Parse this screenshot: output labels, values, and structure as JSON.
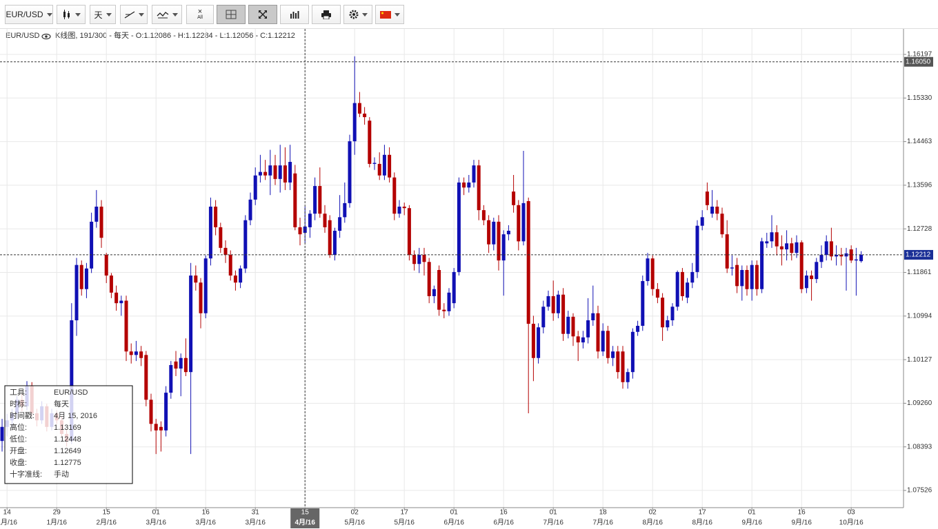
{
  "toolbar": {
    "symbol": "EUR/USD",
    "period": "天",
    "clear_label": "All"
  },
  "chart_data": {
    "type": "candlestick",
    "title": "EUR/USD",
    "subtitle": "K线图, 191/300 - 每天 - O:1.12086 - H:1.12284 - L:1.12056 - C:1.12212",
    "up_color": "#1010b4",
    "down_color": "#b40000",
    "grid": true,
    "ylim": [
      1.07184,
      1.16704
    ],
    "yticks": [
      1.07526,
      1.08393,
      {
        "value": 1.0926,
        "label": "1.09260"
      },
      1.10127,
      1.10994,
      1.11861,
      1.12728,
      1.13596,
      1.14463,
      {
        "value": 1.1533,
        "label": "1.15330"
      },
      1.16197
    ],
    "xlim": [
      -0.42,
      181.53
    ],
    "xticks": [
      {
        "value": 1,
        "label": "14"
      },
      {
        "value": 11,
        "label": "29"
      },
      {
        "value": 21,
        "label": "15"
      },
      {
        "value": 31,
        "label": "01"
      },
      {
        "value": 41,
        "label": "16"
      },
      {
        "value": 51,
        "label": "31"
      },
      {
        "value": 61,
        "label": "15"
      },
      {
        "value": 71,
        "label": "02"
      },
      {
        "value": 81,
        "label": "17"
      },
      {
        "value": 91,
        "label": "01"
      },
      {
        "value": 101,
        "label": "16"
      },
      {
        "value": 111,
        "label": "01"
      },
      {
        "value": 121,
        "label": "18"
      },
      {
        "value": 131,
        "label": "02"
      },
      {
        "value": 141,
        "label": "17"
      },
      {
        "value": 151,
        "label": "01"
      },
      {
        "value": 161,
        "label": "16"
      },
      {
        "value": 171,
        "label": "03"
      }
    ],
    "xtick_months": [
      "1月/16",
      "1月/16",
      "2月/16",
      "3月/16",
      "3月/16",
      "3月/16",
      "4月/16",
      "5月/16",
      "5月/16",
      "6月/16",
      "6月/16",
      "7月/16",
      "7月/16",
      "8月/16",
      "8月/16",
      "9月/16",
      "9月/16",
      "10月/16"
    ],
    "crosshair": {
      "x": 61,
      "x_label": "15",
      "x_month": "4月/16",
      "y": {
        "value": 1.1605,
        "label": "1.16050"
      }
    },
    "last_price": 1.12212,
    "ohlc": [
      [
        1.0851,
        1.0895,
        1.083,
        1.0879
      ],
      [
        1.0879,
        1.0905,
        1.086,
        1.0892
      ],
      [
        1.0892,
        1.0915,
        1.0878,
        1.0906
      ],
      [
        1.0906,
        1.094,
        1.0895,
        1.0933
      ],
      [
        1.0933,
        1.0945,
        1.091,
        1.092
      ],
      [
        1.092,
        1.097,
        1.0912,
        1.0961
      ],
      [
        1.0961,
        1.0968,
        1.09,
        1.0906
      ],
      [
        1.0906,
        1.0915,
        1.088,
        1.0892
      ],
      [
        1.0892,
        1.093,
        1.0885,
        1.092
      ],
      [
        1.092,
        1.0925,
        1.087,
        1.0879
      ],
      [
        1.0879,
        1.0915,
        1.0872,
        1.0906
      ],
      [
        1.0906,
        1.0912,
        1.0885,
        1.0892
      ],
      [
        1.0892,
        1.09,
        1.086,
        1.0865
      ],
      [
        1.0865,
        1.0875,
        1.084,
        1.0851
      ],
      [
        1.0851,
        1.1125,
        1.0845,
        1.1091
      ],
      [
        1.1091,
        1.1215,
        1.106,
        1.1201
      ],
      [
        1.1201,
        1.121,
        1.114,
        1.1153
      ],
      [
        1.1153,
        1.1205,
        1.1135,
        1.1194
      ],
      [
        1.1194,
        1.1305,
        1.1185,
        1.1287
      ],
      [
        1.1287,
        1.135,
        1.1275,
        1.1317
      ],
      [
        1.1317,
        1.133,
        1.1235,
        1.1255
      ],
      [
        1.1221,
        1.1225,
        1.1165,
        1.118
      ],
      [
        1.118,
        1.1185,
        1.1135,
        1.1146
      ],
      [
        1.1146,
        1.116,
        1.111,
        1.1125
      ],
      [
        1.1125,
        1.114,
        1.11,
        1.113
      ],
      [
        1.113,
        1.114,
        1.101,
        1.1029
      ],
      [
        1.1029,
        1.1045,
        1.1005,
        1.1022
      ],
      [
        1.1022,
        1.105,
        1.101,
        1.1029
      ],
      [
        1.1029,
        1.104,
        1.1,
        1.1016
      ],
      [
        1.1022,
        1.103,
        1.092,
        1.0933
      ],
      [
        1.0933,
        1.0945,
        1.087,
        1.0885
      ],
      [
        1.0885,
        1.0895,
        1.0825,
        1.0872
      ],
      [
        1.0879,
        1.089,
        1.083,
        1.0872
      ],
      [
        1.0872,
        1.096,
        1.086,
        1.0947
      ],
      [
        1.0947,
        1.101,
        1.0935,
        1.1002
      ],
      [
        1.1009,
        1.103,
        1.098,
        1.0995
      ],
      [
        1.0995,
        1.1025,
        1.094,
        1.1016
      ],
      [
        1.1016,
        1.1055,
        1.098,
        1.0988
      ],
      [
        1.0988,
        1.1205,
        1.0825,
        1.118
      ],
      [
        1.118,
        1.12,
        1.115,
        1.1166
      ],
      [
        1.1166,
        1.1175,
        1.1075,
        1.1105
      ],
      [
        1.1105,
        1.122,
        1.1095,
        1.1214
      ],
      [
        1.1214,
        1.1335,
        1.12,
        1.1317
      ],
      [
        1.1317,
        1.133,
        1.126,
        1.1276
      ],
      [
        1.1276,
        1.1285,
        1.1225,
        1.1235
      ],
      [
        1.1235,
        1.125,
        1.1205,
        1.1221
      ],
      [
        1.1221,
        1.123,
        1.117,
        1.118
      ],
      [
        1.118,
        1.119,
        1.115,
        1.1166
      ],
      [
        1.1166,
        1.12,
        1.1155,
        1.1194
      ],
      [
        1.1194,
        1.13,
        1.1185,
        1.129
      ],
      [
        1.129,
        1.1345,
        1.128,
        1.1331
      ],
      [
        1.1331,
        1.1395,
        1.132,
        1.1379
      ],
      [
        1.1379,
        1.142,
        1.1365,
        1.1386
      ],
      [
        1.1386,
        1.141,
        1.137,
        1.1379
      ],
      [
        1.1379,
        1.143,
        1.134,
        1.1399
      ],
      [
        1.1399,
        1.142,
        1.136,
        1.1372
      ],
      [
        1.1372,
        1.144,
        1.1345,
        1.1399
      ],
      [
        1.1399,
        1.1435,
        1.135,
        1.1365
      ],
      [
        1.1365,
        1.144,
        1.135,
        1.1406
      ],
      [
        1.1383,
        1.14,
        1.127,
        1.1276
      ],
      [
        1.1276,
        1.1295,
        1.124,
        1.1262
      ],
      [
        1.12649,
        1.13169,
        1.12448,
        1.12775
      ],
      [
        1.1276,
        1.131,
        1.1255,
        1.1303
      ],
      [
        1.1303,
        1.1375,
        1.129,
        1.1358
      ],
      [
        1.1358,
        1.1395,
        1.1295,
        1.1303
      ],
      [
        1.1303,
        1.132,
        1.1265,
        1.1276
      ],
      [
        1.129,
        1.13,
        1.1215,
        1.1221
      ],
      [
        1.1221,
        1.1275,
        1.121,
        1.1269
      ],
      [
        1.1269,
        1.134,
        1.1255,
        1.1296
      ],
      [
        1.1296,
        1.1365,
        1.1285,
        1.1324
      ],
      [
        1.1324,
        1.146,
        1.1315,
        1.1447
      ],
      [
        1.1447,
        1.1616,
        1.142,
        1.1523
      ],
      [
        1.1523,
        1.1545,
        1.1495,
        1.1502
      ],
      [
        1.1502,
        1.1515,
        1.148,
        1.1495
      ],
      [
        1.1488,
        1.1495,
        1.1395,
        1.1402
      ],
      [
        1.1402,
        1.1415,
        1.139,
        1.1404
      ],
      [
        1.1402,
        1.1425,
        1.137,
        1.1379
      ],
      [
        1.1379,
        1.144,
        1.137,
        1.142
      ],
      [
        1.142,
        1.1435,
        1.1365,
        1.1375
      ],
      [
        1.1375,
        1.1385,
        1.129,
        1.1303
      ],
      [
        1.1303,
        1.133,
        1.1295,
        1.1317
      ],
      [
        1.1317,
        1.1325,
        1.13,
        1.1314
      ],
      [
        1.1314,
        1.132,
        1.121,
        1.1221
      ],
      [
        1.1221,
        1.123,
        1.119,
        1.1203
      ],
      [
        1.1203,
        1.1235,
        1.1185,
        1.1221
      ],
      [
        1.1221,
        1.1235,
        1.118,
        1.1207
      ],
      [
        1.1207,
        1.1215,
        1.1125,
        1.1139
      ],
      [
        1.1139,
        1.116,
        1.1125,
        1.1153
      ],
      [
        1.1191,
        1.12,
        1.11,
        1.1112
      ],
      [
        1.1112,
        1.1125,
        1.1095,
        1.1109
      ],
      [
        1.1109,
        1.1155,
        1.11,
        1.1146
      ],
      [
        1.1125,
        1.1195,
        1.1115,
        1.1187
      ],
      [
        1.1187,
        1.1375,
        1.118,
        1.1365
      ],
      [
        1.1365,
        1.1375,
        1.134,
        1.1355
      ],
      [
        1.1355,
        1.138,
        1.1345,
        1.1365
      ],
      [
        1.1365,
        1.141,
        1.1355,
        1.1399
      ],
      [
        1.1399,
        1.141,
        1.129,
        1.131
      ],
      [
        1.131,
        1.132,
        1.128,
        1.129
      ],
      [
        1.129,
        1.13,
        1.1225,
        1.1242
      ],
      [
        1.1242,
        1.1295,
        1.123,
        1.1287
      ],
      [
        1.1287,
        1.13,
        1.119,
        1.121
      ],
      [
        1.121,
        1.127,
        1.114,
        1.1262
      ],
      [
        1.1262,
        1.128,
        1.125,
        1.1269
      ],
      [
        1.1347,
        1.138,
        1.1305,
        1.132
      ],
      [
        1.132,
        1.133,
        1.123,
        1.1248
      ],
      [
        1.1248,
        1.1428,
        1.124,
        1.1324
      ],
      [
        1.1328,
        1.1335,
        1.0906,
        1.1084
      ],
      [
        1.1084,
        1.11,
        1.097,
        1.1016
      ],
      [
        1.1016,
        1.1085,
        1.1005,
        1.1077
      ],
      [
        1.1077,
        1.113,
        1.1065,
        1.1118
      ],
      [
        1.1118,
        1.115,
        1.111,
        1.1139
      ],
      [
        1.1139,
        1.117,
        1.109,
        1.1105
      ],
      [
        1.1105,
        1.115,
        1.1095,
        1.1142
      ],
      [
        1.1142,
        1.1155,
        1.105,
        1.1064
      ],
      [
        1.1064,
        1.111,
        1.1055,
        1.1098
      ],
      [
        1.1098,
        1.1105,
        1.104,
        1.1059
      ],
      [
        1.1059,
        1.107,
        1.101,
        1.1047
      ],
      [
        1.1047,
        1.107,
        1.1035,
        1.1057
      ],
      [
        1.1057,
        1.1135,
        1.1045,
        1.1091
      ],
      [
        1.1091,
        1.116,
        1.108,
        1.1105
      ],
      [
        1.1105,
        1.112,
        1.1015,
        1.1029
      ],
      [
        1.1029,
        1.1085,
        1.102,
        1.107
      ],
      [
        1.107,
        1.108,
        1.1005,
        1.1016
      ],
      [
        1.1016,
        1.104,
        1.1,
        1.1029
      ],
      [
        1.1029,
        1.104,
        1.0975,
        1.0988
      ],
      [
        1.1029,
        1.104,
        1.0955,
        1.0968
      ],
      [
        1.0968,
        1.0995,
        1.0955,
        1.0988
      ],
      [
        1.0988,
        1.1075,
        1.0975,
        1.1068
      ],
      [
        1.1068,
        1.109,
        1.106,
        1.108
      ],
      [
        1.108,
        1.118,
        1.107,
        1.1169
      ],
      [
        1.1169,
        1.1225,
        1.116,
        1.1214
      ],
      [
        1.1214,
        1.122,
        1.114,
        1.1153
      ],
      [
        1.1153,
        1.1165,
        1.1125,
        1.1136
      ],
      [
        1.1136,
        1.1145,
        1.105,
        1.1077
      ],
      [
        1.1077,
        1.11,
        1.107,
        1.1091
      ],
      [
        1.1091,
        1.1125,
        1.108,
        1.1118
      ],
      [
        1.1118,
        1.119,
        1.111,
        1.1187
      ],
      [
        1.1187,
        1.1195,
        1.113,
        1.1139
      ],
      [
        1.1136,
        1.1175,
        1.1125,
        1.1166
      ],
      [
        1.1166,
        1.1205,
        1.1155,
        1.1187
      ],
      [
        1.1187,
        1.129,
        1.1175,
        1.1279
      ],
      [
        1.1279,
        1.131,
        1.127,
        1.1296
      ],
      [
        1.1347,
        1.1365,
        1.131,
        1.132
      ],
      [
        1.1303,
        1.135,
        1.1295,
        1.1317
      ],
      [
        1.1317,
        1.133,
        1.129,
        1.1303
      ],
      [
        1.1303,
        1.1315,
        1.1255,
        1.1262
      ],
      [
        1.1262,
        1.129,
        1.1185,
        1.1194
      ],
      [
        1.1194,
        1.122,
        1.118,
        1.1196
      ],
      [
        1.1201,
        1.1215,
        1.1145,
        1.1159
      ],
      [
        1.1159,
        1.12,
        1.113,
        1.1191
      ],
      [
        1.1191,
        1.12,
        1.114,
        1.1153
      ],
      [
        1.1153,
        1.121,
        1.113,
        1.1201
      ],
      [
        1.1201,
        1.121,
        1.114,
        1.1153
      ],
      [
        1.1153,
        1.1255,
        1.1145,
        1.1248
      ],
      [
        1.1244,
        1.1265,
        1.1235,
        1.1248
      ],
      [
        1.1248,
        1.13,
        1.1235,
        1.1266
      ],
      [
        1.1266,
        1.128,
        1.122,
        1.1238
      ],
      [
        1.1238,
        1.126,
        1.12,
        1.1232
      ],
      [
        1.1232,
        1.127,
        1.121,
        1.1244
      ],
      [
        1.1244,
        1.1255,
        1.121,
        1.1225
      ],
      [
        1.1225,
        1.126,
        1.1215,
        1.1246
      ],
      [
        1.1246,
        1.125,
        1.1145,
        1.1153
      ],
      [
        1.1155,
        1.119,
        1.1145,
        1.118
      ],
      [
        1.118,
        1.119,
        1.113,
        1.1173
      ],
      [
        1.1173,
        1.1215,
        1.1165,
        1.1207
      ],
      [
        1.1207,
        1.124,
        1.1195,
        1.1221
      ],
      [
        1.1221,
        1.126,
        1.121,
        1.1248
      ],
      [
        1.1248,
        1.1275,
        1.121,
        1.1218
      ],
      [
        1.1218,
        1.124,
        1.12,
        1.1221
      ],
      [
        1.1221,
        1.1235,
        1.12,
        1.1218
      ],
      [
        1.1218,
        1.1235,
        1.115,
        1.1224
      ],
      [
        1.1232,
        1.124,
        1.1205,
        1.121
      ],
      [
        1.121,
        1.1235,
        1.114,
        1.1212
      ],
      [
        1.12086,
        1.12284,
        1.12056,
        1.12212
      ]
    ]
  },
  "info_panel": {
    "rows": [
      [
        "工具:",
        "EUR/USD"
      ],
      [
        "时标:",
        "每天"
      ],
      [
        "时间戳:",
        "4月 15, 2016"
      ],
      [
        "高位:",
        "1.13169"
      ],
      [
        "低位:",
        "1.12448"
      ],
      [
        "开盘:",
        "1.12649"
      ],
      [
        "收盘:",
        "1.12775"
      ],
      [
        "十字准线:",
        "手动"
      ]
    ]
  }
}
